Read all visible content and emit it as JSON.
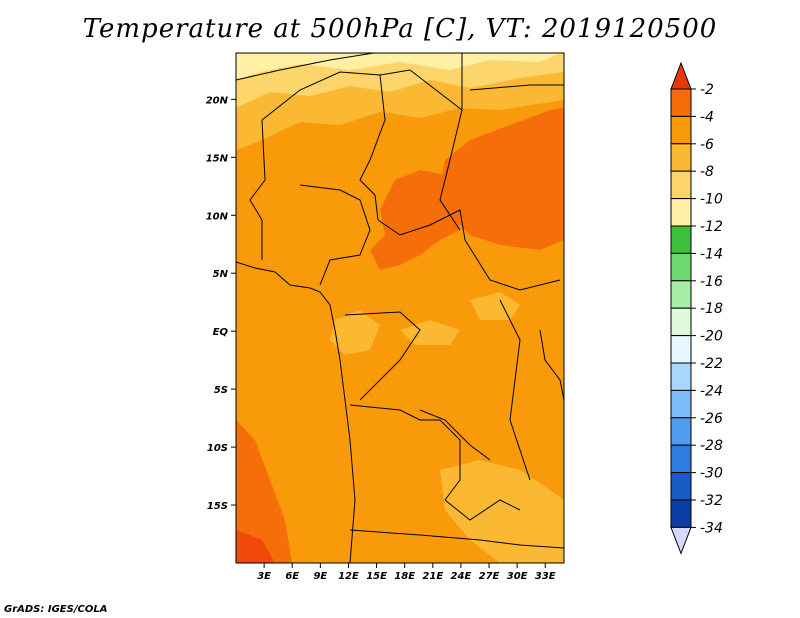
{
  "chart_data": {
    "type": "heatmap",
    "title": "Temperature at 500hPa [C], VT: 2019120500",
    "variable": "Temperature at 500hPa",
    "units": "C",
    "valid_time": "2019120500",
    "x_axis": {
      "range_deg": [
        0,
        35
      ],
      "ticks": [
        3,
        6,
        9,
        12,
        15,
        18,
        21,
        24,
        27,
        30,
        33
      ],
      "tick_labels": [
        "3E",
        "6E",
        "9E",
        "12E",
        "15E",
        "18E",
        "21E",
        "24E",
        "27E",
        "30E",
        "33E"
      ]
    },
    "y_axis": {
      "range_deg": [
        -20,
        24
      ],
      "ticks": [
        20,
        15,
        10,
        5,
        0,
        -5,
        -10,
        -15
      ],
      "tick_labels": [
        "20N",
        "15N",
        "10N",
        "5N",
        "EQ",
        "5S",
        "10S",
        "15S"
      ]
    },
    "colorbar": {
      "levels": [
        -2,
        -4,
        -6,
        -8,
        -10,
        -12,
        -14,
        -16,
        -18,
        -20,
        -22,
        -24,
        -26,
        -28,
        -30,
        -32,
        -34
      ],
      "labels": [
        "-2",
        "-4",
        "-6",
        "-8",
        "-10",
        "-12",
        "-14",
        "-16",
        "-18",
        "-20",
        "-22",
        "-24",
        "-26",
        "-28",
        "-30",
        "-32",
        "-34"
      ],
      "colors": [
        "#f04a0a",
        "#f66e0a",
        "#f99a0a",
        "#fbb833",
        "#fcd66a",
        "#fff0a6",
        "#3cbf3c",
        "#6fd86f",
        "#a8eda8",
        "#ddfadd",
        "#e7f7ff",
        "#a9d6fb",
        "#7cbcf8",
        "#4f9df0",
        "#2d7ce0",
        "#1a5cc5",
        "#0a3ea6",
        "#071570"
      ],
      "top_arrow_color": "#e8380a",
      "bottom_arrow_color": "#d8d8f8"
    },
    "observed_range": "-4 to -12 C; warmest (-2 to -4 C) over central Africa 10N and far southwest"
  },
  "credit": "GrADS: IGES/COLA"
}
